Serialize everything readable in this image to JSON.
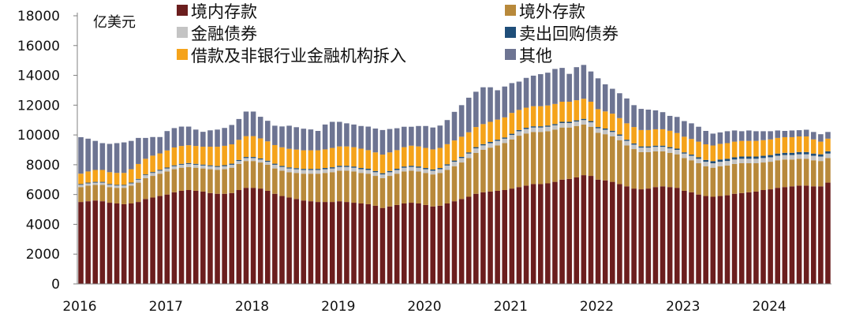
{
  "chart_data": {
    "type": "bar",
    "stacked": true,
    "unit_label": "亿美元",
    "ylim": [
      0,
      18000
    ],
    "yticks": [
      "0",
      "2000",
      "4000",
      "6000",
      "8000",
      "10000",
      "12000",
      "14000",
      "16000",
      "18000"
    ],
    "x_year_labels": [
      "2016",
      "2017",
      "2018",
      "2019",
      "2020",
      "2021",
      "2022",
      "2023",
      "2024"
    ],
    "periods_per_year": 12,
    "start": "2016-01",
    "grid": false,
    "legend_position": "top",
    "series": [
      {
        "name": "境内存款",
        "color": "#6b1e1e",
        "values": [
          5500,
          5550,
          5600,
          5550,
          5450,
          5400,
          5350,
          5400,
          5500,
          5700,
          5800,
          5900,
          6000,
          6150,
          6250,
          6300,
          6250,
          6200,
          6100,
          6050,
          6050,
          6100,
          6300,
          6450,
          6450,
          6400,
          6250,
          6050,
          5900,
          5800,
          5700,
          5600,
          5550,
          5500,
          5500,
          5500,
          5550,
          5500,
          5450,
          5400,
          5350,
          5250,
          5100,
          5200,
          5300,
          5400,
          5450,
          5400,
          5300,
          5200,
          5250,
          5400,
          5550,
          5700,
          5850,
          6050,
          6150,
          6200,
          6250,
          6300,
          6400,
          6500,
          6600,
          6700,
          6700,
          6750,
          6850,
          7000,
          7050,
          7150,
          7300,
          7250,
          7000,
          6950,
          6850,
          6700,
          6550,
          6400,
          6350,
          6400,
          6500,
          6550,
          6500,
          6450,
          6250,
          6150,
          6000,
          5900,
          5850,
          5900,
          5950,
          6050,
          6100,
          6150,
          6200,
          6300,
          6350,
          6450,
          6500,
          6550,
          6600,
          6600,
          6550,
          6550,
          6800
        ]
      },
      {
        "name": "境外存款",
        "color": "#b8893b",
        "values": [
          1000,
          1050,
          1050,
          1100,
          1050,
          1050,
          1100,
          1200,
          1300,
          1400,
          1450,
          1500,
          1550,
          1550,
          1550,
          1550,
          1550,
          1550,
          1600,
          1600,
          1650,
          1700,
          1750,
          1800,
          1800,
          1750,
          1750,
          1700,
          1700,
          1700,
          1750,
          1800,
          1850,
          1900,
          1950,
          2000,
          2050,
          2100,
          2100,
          2050,
          2050,
          2000,
          2000,
          2050,
          2100,
          2150,
          2150,
          2150,
          2150,
          2150,
          2200,
          2250,
          2350,
          2450,
          2600,
          2750,
          2850,
          2950,
          3050,
          3150,
          3300,
          3450,
          3500,
          3500,
          3500,
          3500,
          3500,
          3500,
          3450,
          3450,
          3400,
          3300,
          3150,
          3100,
          3050,
          2950,
          2750,
          2650,
          2500,
          2450,
          2400,
          2350,
          2300,
          2250,
          2200,
          2150,
          2100,
          2000,
          1950,
          2000,
          2000,
          2000,
          2000,
          1950,
          1900,
          1850,
          1850,
          1850,
          1850,
          1800,
          1800,
          1800,
          1750,
          1700,
          1650
        ]
      },
      {
        "name": "金融债券",
        "color": "#c4c4c4",
        "values": [
          150,
          150,
          150,
          150,
          150,
          150,
          150,
          150,
          200,
          200,
          200,
          200,
          200,
          200,
          200,
          200,
          200,
          200,
          200,
          200,
          200,
          200,
          200,
          200,
          200,
          200,
          200,
          250,
          250,
          250,
          250,
          250,
          250,
          250,
          250,
          250,
          250,
          250,
          250,
          250,
          250,
          250,
          250,
          250,
          250,
          250,
          250,
          250,
          250,
          250,
          250,
          300,
          300,
          300,
          300,
          300,
          300,
          300,
          300,
          300,
          300,
          300,
          300,
          300,
          300,
          300,
          300,
          300,
          300,
          300,
          300,
          300,
          300,
          300,
          300,
          300,
          300,
          300,
          300,
          300,
          300,
          300,
          300,
          300,
          300,
          300,
          300,
          300,
          300,
          300,
          300,
          300,
          300,
          300,
          300,
          300,
          300,
          300,
          300,
          300,
          300,
          300,
          300,
          300,
          300
        ]
      },
      {
        "name": "卖出回购债券",
        "color": "#1f4e79",
        "values": [
          50,
          50,
          50,
          50,
          50,
          50,
          50,
          50,
          50,
          50,
          60,
          60,
          60,
          60,
          60,
          60,
          60,
          60,
          60,
          60,
          70,
          70,
          70,
          70,
          70,
          70,
          70,
          70,
          70,
          70,
          70,
          70,
          70,
          70,
          80,
          80,
          80,
          80,
          80,
          80,
          80,
          80,
          80,
          80,
          80,
          80,
          80,
          80,
          80,
          80,
          80,
          80,
          80,
          80,
          80,
          80,
          80,
          80,
          80,
          80,
          80,
          80,
          80,
          80,
          80,
          80,
          80,
          80,
          80,
          80,
          80,
          80,
          80,
          80,
          80,
          80,
          80,
          80,
          80,
          80,
          80,
          80,
          80,
          80,
          80,
          80,
          100,
          120,
          140,
          150,
          150,
          150,
          150,
          150,
          150,
          150,
          150,
          150,
          150,
          150,
          150,
          150,
          150,
          150,
          150
        ]
      },
      {
        "name": "借款及非银行业金融机构拆入",
        "color": "#f5a31a",
        "values": [
          700,
          750,
          800,
          800,
          800,
          800,
          800,
          900,
          1000,
          1050,
          1100,
          1100,
          1150,
          1200,
          1200,
          1200,
          1200,
          1200,
          1250,
          1300,
          1300,
          1300,
          1350,
          1400,
          1400,
          1350,
          1300,
          1250,
          1250,
          1250,
          1250,
          1250,
          1250,
          1250,
          1250,
          1300,
          1300,
          1300,
          1300,
          1300,
          1250,
          1250,
          1250,
          1250,
          1250,
          1300,
          1350,
          1350,
          1350,
          1350,
          1350,
          1350,
          1350,
          1350,
          1350,
          1350,
          1350,
          1350,
          1350,
          1350,
          1400,
          1350,
          1350,
          1350,
          1350,
          1350,
          1350,
          1350,
          1350,
          1350,
          1350,
          1300,
          1200,
          1150,
          1150,
          1100,
          1100,
          1100,
          1100,
          1100,
          1100,
          1100,
          1100,
          1050,
          1050,
          1050,
          1050,
          1050,
          1050,
          1050,
          1050,
          1050,
          1050,
          1050,
          1050,
          1050,
          1050,
          1050,
          1050,
          1050,
          1050,
          1050,
          950,
          850,
          850
        ]
      },
      {
        "name": "其他",
        "color": "#6d7492",
        "values": [
          2450,
          2200,
          1950,
          1800,
          1900,
          2000,
          2050,
          1900,
          1750,
          1400,
          1250,
          1100,
          1300,
          1300,
          1300,
          1250,
          1100,
          1000,
          1100,
          1150,
          1200,
          1300,
          1400,
          1650,
          1650,
          1450,
          1380,
          1300,
          1400,
          1550,
          1500,
          1450,
          1400,
          1300,
          1670,
          1750,
          1650,
          1550,
          1520,
          1520,
          1580,
          1600,
          1650,
          1570,
          1470,
          1370,
          1270,
          1370,
          1470,
          1470,
          1500,
          1620,
          1920,
          2120,
          2320,
          2370,
          2470,
          2320,
          1970,
          2070,
          2000,
          1900,
          2000,
          2050,
          2150,
          2200,
          2350,
          2270,
          1870,
          2220,
          2270,
          2030,
          2070,
          1820,
          1670,
          1670,
          1670,
          1470,
          1420,
          1370,
          1270,
          1150,
          1000,
          1080,
          1050,
          1050,
          1000,
          900,
          800,
          770,
          800,
          750,
          650,
          700,
          650,
          600,
          550,
          500,
          420,
          450,
          420,
          450,
          500,
          500,
          450
        ]
      }
    ]
  }
}
